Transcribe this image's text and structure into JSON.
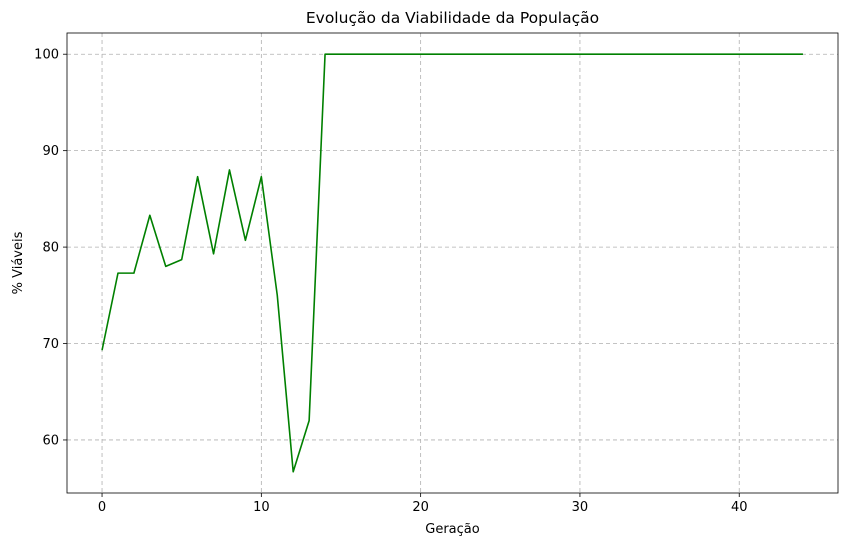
{
  "chart_data": {
    "type": "line",
    "title": "Evolução da Viabilidade da População",
    "xlabel": "Geração",
    "ylabel": "% Viáveis",
    "xlim": [
      -2.2,
      46.2
    ],
    "ylim": [
      54.5,
      102.2
    ],
    "xticks": [
      0,
      10,
      20,
      30,
      40
    ],
    "yticks": [
      60,
      70,
      80,
      90,
      100
    ],
    "grid": true,
    "series": [
      {
        "color": "#008000",
        "x": [
          0,
          1,
          2,
          3,
          4,
          5,
          6,
          7,
          8,
          9,
          10,
          11,
          12,
          13,
          14,
          15,
          16,
          17,
          18,
          19,
          20,
          21,
          22,
          23,
          24,
          25,
          26,
          27,
          28,
          29,
          30,
          31,
          32,
          33,
          34,
          35,
          36,
          37,
          38,
          39,
          40,
          41,
          42,
          43,
          44
        ],
        "values": [
          69.3,
          77.3,
          77.3,
          83.3,
          78.0,
          78.7,
          87.3,
          79.3,
          88.0,
          80.7,
          87.3,
          75.0,
          56.7,
          62.0,
          100,
          100,
          100,
          100,
          100,
          100,
          100,
          100,
          100,
          100,
          100,
          100,
          100,
          100,
          100,
          100,
          100,
          100,
          100,
          100,
          100,
          100,
          100,
          100,
          100,
          100,
          100,
          100,
          100,
          100,
          100
        ]
      }
    ]
  }
}
